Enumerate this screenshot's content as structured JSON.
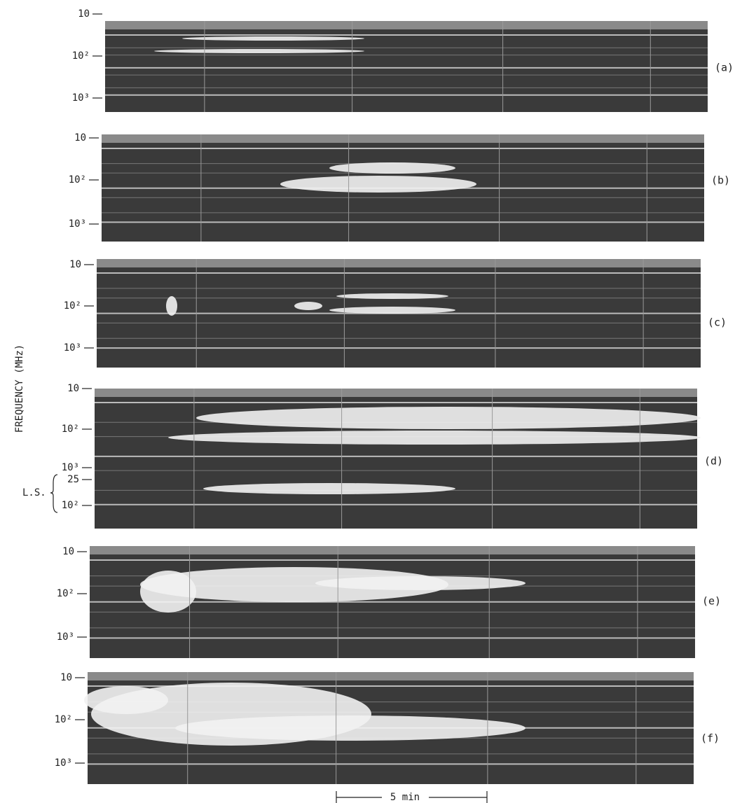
{
  "axis_label": "FREQUENCY (MHz)",
  "panels": [
    {
      "label": "(a)",
      "ticks": [
        "10",
        "10²",
        "10³"
      ]
    },
    {
      "label": "(b)",
      "ticks": [
        "10",
        "10²",
        "10³"
      ]
    },
    {
      "label": "(c)",
      "ticks": [
        "10",
        "10²",
        "10³"
      ]
    },
    {
      "label": "(d)",
      "ticks": [
        "10",
        "10²",
        "10³"
      ],
      "ls_label": "L.S.",
      "ls_ticks": [
        "25",
        "10²"
      ]
    },
    {
      "label": "(e)",
      "ticks": [
        "10",
        "10²",
        "10³"
      ]
    },
    {
      "label": "(f)",
      "ticks": [
        "10",
        "10²",
        "10³"
      ]
    }
  ],
  "scale_bar": "5 min"
}
